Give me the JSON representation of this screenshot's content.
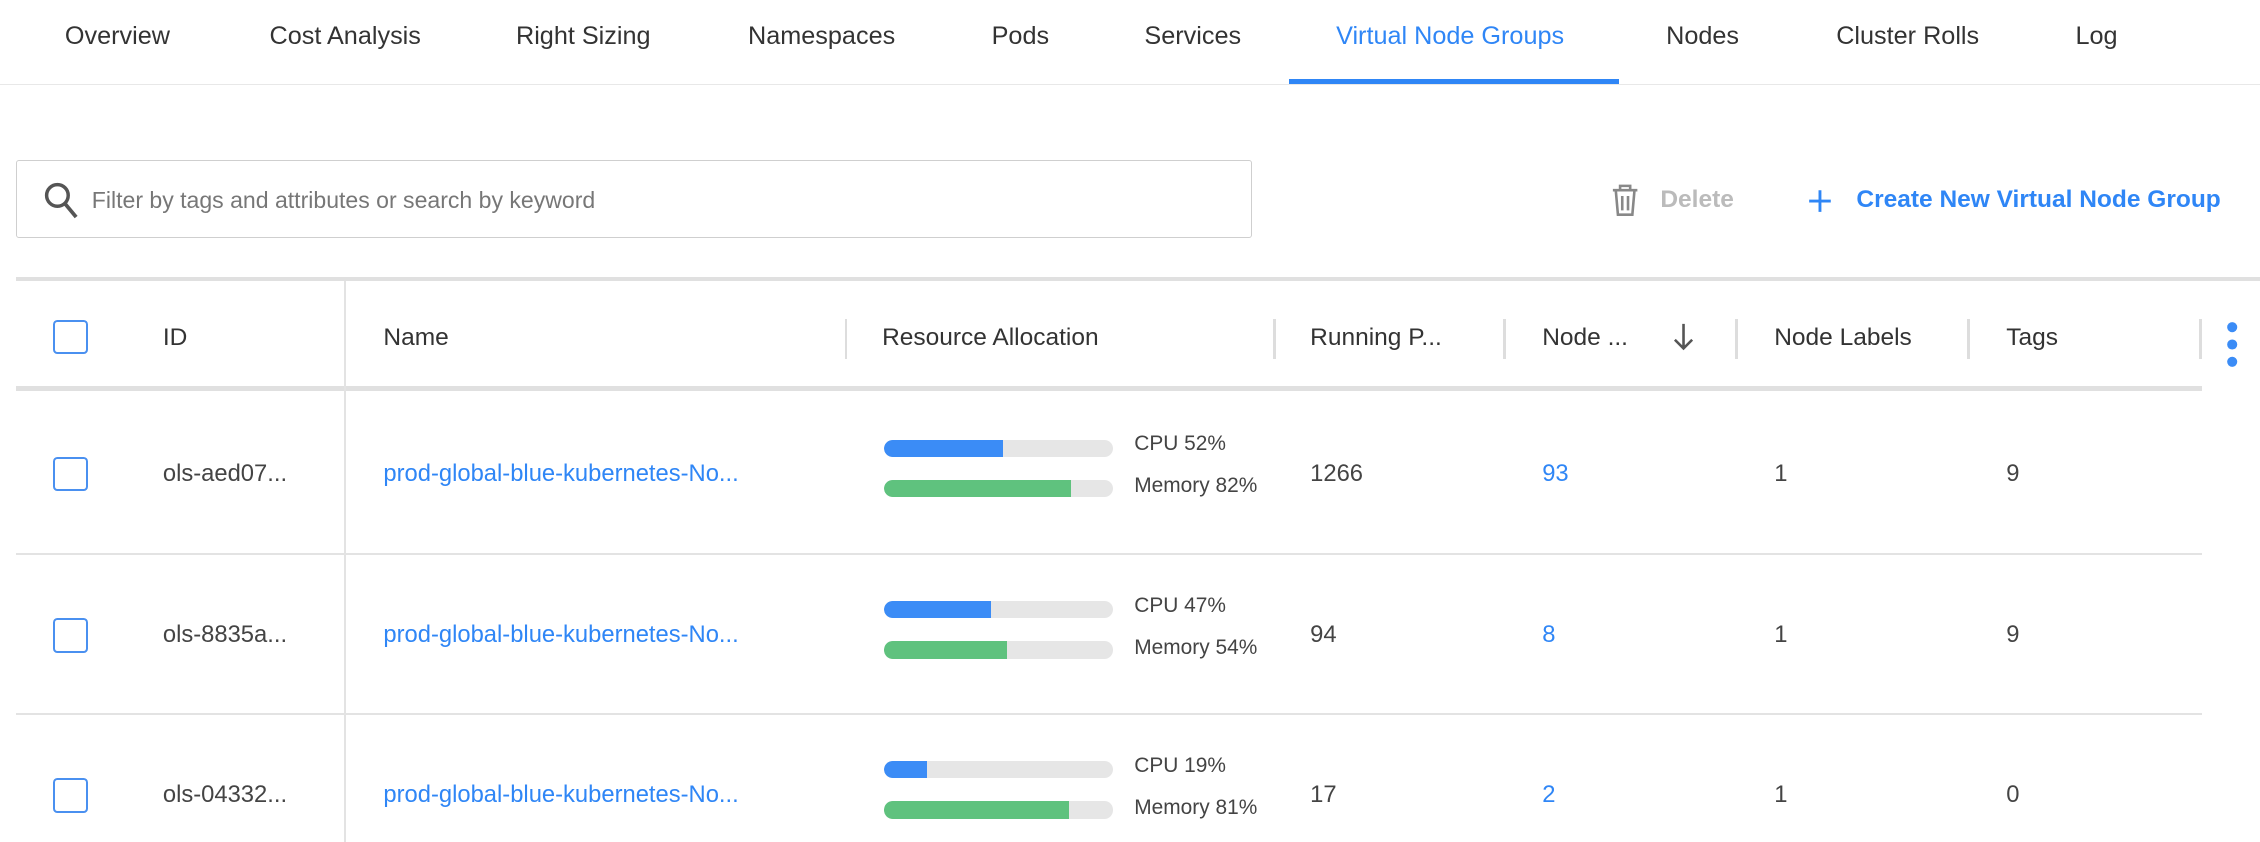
{
  "tabs": [
    {
      "label": "Overview"
    },
    {
      "label": "Cost Analysis"
    },
    {
      "label": "Right Sizing"
    },
    {
      "label": "Namespaces"
    },
    {
      "label": "Pods"
    },
    {
      "label": "Services"
    },
    {
      "label": "Virtual Node Groups",
      "active": true
    },
    {
      "label": "Nodes"
    },
    {
      "label": "Cluster Rolls"
    },
    {
      "label": "Log"
    }
  ],
  "search": {
    "placeholder": "Filter by tags and attributes or search by keyword",
    "value": ""
  },
  "toolbar": {
    "delete_label": "Delete",
    "create_label": "Create New Virtual Node Group"
  },
  "colors": {
    "accent": "#2f86f6",
    "cpu": "#3b8cf6",
    "memory": "#5fc27e",
    "disabled": "#bbbbbb"
  },
  "table": {
    "columns": [
      "ID",
      "Name",
      "Resource Allocation",
      "Running P...",
      "Node ...",
      "Node Labels",
      "Tags"
    ],
    "sort": {
      "column": "Node ...",
      "direction": "descending"
    },
    "rows": [
      {
        "id": "ols-aed07...",
        "name": "prod-global-blue-kubernetes-No...",
        "cpu": 52,
        "cpu_label": "CPU 52%",
        "memory": 82,
        "memory_label": "Memory 82%",
        "running_pods": "1266",
        "nodes": "93",
        "node_labels": "1",
        "tags": "9"
      },
      {
        "id": "ols-8835a...",
        "name": "prod-global-blue-kubernetes-No...",
        "cpu": 47,
        "cpu_label": "CPU 47%",
        "memory": 54,
        "memory_label": "Memory 54%",
        "running_pods": "94",
        "nodes": "8",
        "node_labels": "1",
        "tags": "9"
      },
      {
        "id": "ols-04332...",
        "name": "prod-global-blue-kubernetes-No...",
        "cpu": 19,
        "cpu_label": "CPU 19%",
        "memory": 81,
        "memory_label": "Memory 81%",
        "running_pods": "17",
        "nodes": "2",
        "node_labels": "1",
        "tags": "0"
      }
    ]
  }
}
